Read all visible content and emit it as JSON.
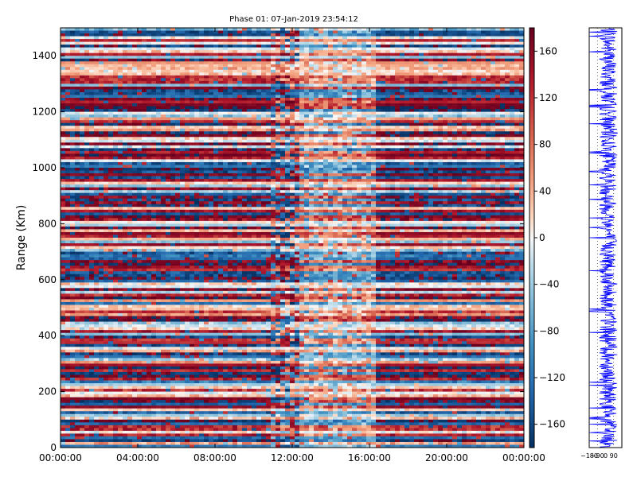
{
  "chart_data": [
    {
      "type": "heatmap",
      "title": "Phase 01: 07-Jan-2019 23:54:12",
      "xlabel": "",
      "ylabel": "Range (Km)",
      "x_tick_labels": [
        "00:00:00",
        "04:00:00",
        "08:00:00",
        "12:00:00",
        "16:00:00",
        "20:00:00",
        "00:00:00"
      ],
      "x_time_range": [
        "00:00:00",
        "24:00:00"
      ],
      "y_ticks": [
        0,
        200,
        400,
        600,
        800,
        1000,
        1200,
        1400
      ],
      "ylim": [
        0,
        1500
      ],
      "colorbar": {
        "ticks": [
          160,
          120,
          80,
          40,
          0,
          -40,
          -80,
          -120,
          -160
        ],
        "range": [
          -180,
          180
        ],
        "colormap": "diverging red-white-blue (RdBu reversed)",
        "colors": {
          "high": "#67001f",
          "mid": "#f7f7f7",
          "low": "#053061"
        }
      }
    },
    {
      "type": "line",
      "xlabel": "",
      "ylabel": "",
      "x_tick_labels": [
        "−180",
        "−90",
        "0",
        "90"
      ],
      "xlim": [
        -180,
        180
      ],
      "ylim": [
        0,
        1500
      ],
      "line_color": "#0000ff"
    }
  ]
}
